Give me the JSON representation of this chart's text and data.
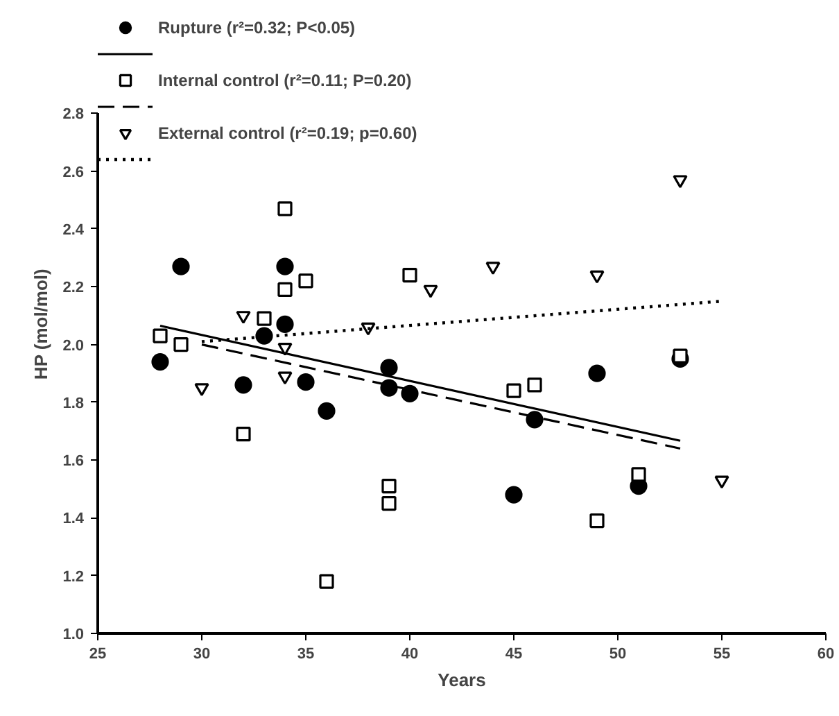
{
  "chart_data": {
    "type": "scatter",
    "xlabel": "Years",
    "ylabel": "HP (mol/mol)",
    "xlim": [
      25,
      60
    ],
    "xticks": [
      25,
      30,
      35,
      40,
      45,
      50,
      55,
      60
    ],
    "ylim": [
      1.0,
      2.8
    ],
    "yticks": [
      {
        "value": 1.0,
        "label": "1.0"
      },
      1.2,
      1.4,
      1.6,
      1.8,
      {
        "value": 2.0,
        "label": "2.0"
      },
      2.2,
      2.4,
      2.6,
      2.8
    ],
    "grid": false,
    "legend": "top",
    "series": [
      {
        "name": "Rupture (r²=0.32; P<0.05)",
        "color": "#000000",
        "marker": "circle",
        "x": [
          28,
          29,
          34,
          34,
          33,
          35,
          32,
          36,
          39,
          39,
          40,
          49,
          46,
          53,
          45,
          51
        ],
        "values": [
          1.94,
          2.27,
          2.27,
          2.07,
          2.03,
          1.87,
          1.86,
          1.77,
          1.92,
          1.85,
          1.83,
          1.9,
          1.74,
          1.95,
          1.48,
          1.51
        ]
      },
      {
        "type": "line",
        "color": "#000000",
        "line_style": "solid",
        "x": [
          28,
          53
        ],
        "values": [
          2.065,
          1.667
        ]
      },
      {
        "name": "Internal control (r²=0.11; P=0.20)",
        "color": "#000000",
        "marker": "square",
        "x": [
          34,
          28,
          29,
          35,
          34,
          40,
          33,
          32,
          39,
          39,
          36,
          45,
          46,
          53,
          51,
          49
        ],
        "values": [
          2.47,
          2.03,
          2.0,
          2.22,
          2.19,
          2.24,
          2.09,
          1.69,
          1.51,
          1.45,
          1.18,
          1.84,
          1.86,
          1.96,
          1.55,
          1.39
        ]
      },
      {
        "type": "line",
        "color": "#000000",
        "line_style": "dashed",
        "x": [
          30,
          53
        ],
        "values": [
          2.0,
          1.64
        ]
      },
      {
        "name": "External control (r²=0.19; p=0.60)",
        "color": "#000000",
        "marker": "triangle",
        "x": [
          41,
          32,
          38,
          34,
          34,
          30,
          53,
          44,
          49,
          55
        ],
        "values": [
          2.19,
          2.1,
          2.06,
          1.99,
          1.89,
          1.85,
          2.57,
          2.27,
          2.24,
          1.53
        ]
      },
      {
        "type": "line",
        "color": "#000000",
        "line_style": "dotted",
        "x": [
          30,
          55
        ],
        "values": [
          2.01,
          2.15
        ]
      }
    ]
  }
}
